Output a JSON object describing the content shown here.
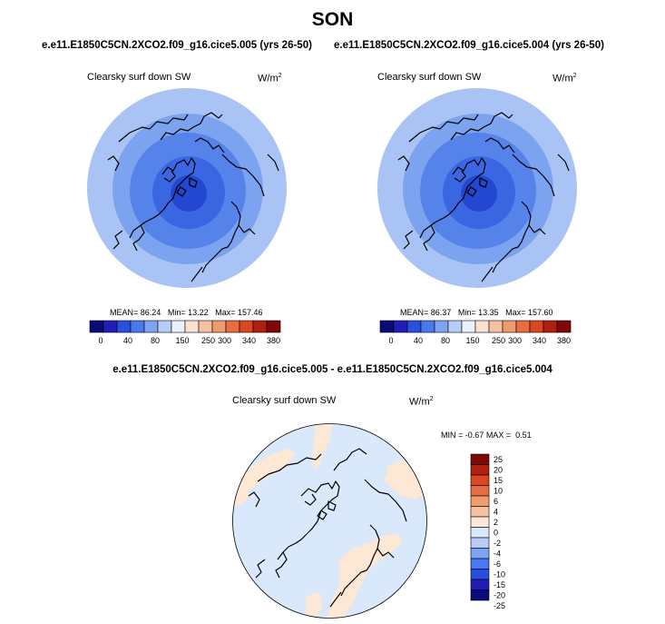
{
  "season": "SON",
  "case_a": "e.e11.E1850C5CN.2XCO2.f09_g16.cice5.005 (yrs 26-50)",
  "case_b": "e.e11.E1850C5CN.2XCO2.f09_g16.cice5.004 (yrs 26-50)",
  "diff_title": "e.e11.E1850C5CN.2XCO2.f09_g16.cice5.005 - e.e11.E1850C5CN.2XCO2.f09_g16.cice5.004",
  "variable": "Clearsky surf down SW",
  "units_base": "W/m",
  "units_exp": "2",
  "panel_a": {
    "mean_label": "MEAN=",
    "mean": "86.24",
    "min_label": "Min=",
    "min": "13.22",
    "max_label": "Max=",
    "max": "157.46"
  },
  "panel_b": {
    "mean_label": "MEAN=",
    "mean": "86.37",
    "min_label": "Min=",
    "min": "13.35",
    "max_label": "Max=",
    "max": "157.60"
  },
  "panel_diff": {
    "min_label": "MIN =",
    "min": "-0.67",
    "max_label": "MAX =",
    "max": "0.51"
  },
  "colorbar": {
    "colors": [
      "#0a0a7a",
      "#1f1fb8",
      "#2a4fe0",
      "#4a78f0",
      "#7da3f5",
      "#b7cdf7",
      "#eaf2fb",
      "#fbe3d2",
      "#f5c1a2",
      "#f09a70",
      "#e86d42",
      "#d9461f",
      "#b11f0e",
      "#7e0808"
    ],
    "labels": [
      "0",
      "40",
      "80",
      "150",
      "250",
      "300",
      "340",
      "380"
    ]
  },
  "diff_colorbar": {
    "colors": [
      "#0a0a7a",
      "#1f1fb8",
      "#2a4fe0",
      "#4a78f0",
      "#7da3f5",
      "#b7cdf7",
      "#d9e8fb",
      "#fde8d6",
      "#f5c1a2",
      "#f09a70",
      "#e86d42",
      "#d9461f",
      "#b11f0e",
      "#7e0808"
    ],
    "labels": [
      "25",
      "20",
      "15",
      "10",
      "6",
      "4",
      "2",
      "0",
      "-2",
      "-4",
      "-6",
      "-10",
      "-15",
      "-20",
      "-25"
    ]
  },
  "map_colors": {
    "ring0": "#a9c4f4",
    "ring1": "#7ca3f0",
    "ring2": "#5683ea",
    "ring3": "#3a66e2",
    "ring4": "#2447d2",
    "diff_bg": "#d9e8fb",
    "diff_pos": "#fde8d6",
    "coast": "#000000"
  }
}
